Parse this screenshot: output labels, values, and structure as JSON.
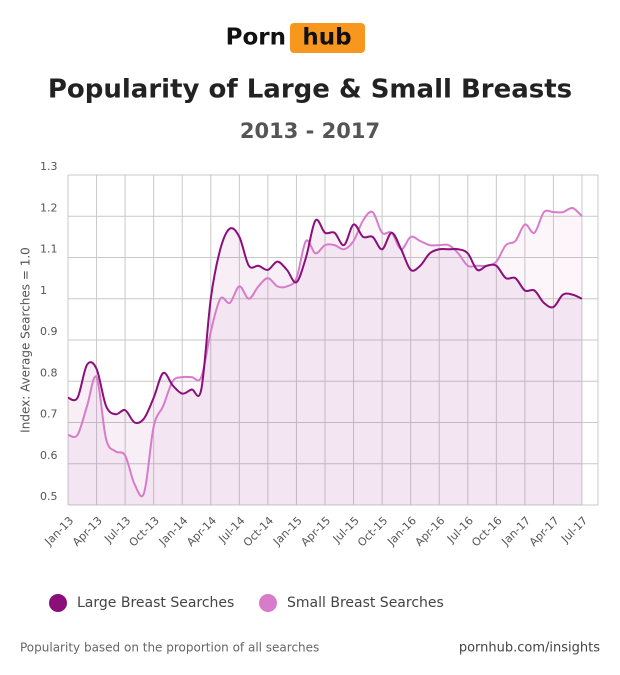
{
  "logo": {
    "left": "Porn",
    "right": "hub"
  },
  "chart_data": {
    "type": "line",
    "title": "Popularity of Large & Small Breasts",
    "subtitle": "2013 - 2017",
    "y_label": "Index: Average Searches = 1.0",
    "categories": [
      "Jan-13",
      null,
      null,
      "Apr-13",
      null,
      null,
      "Jul-13",
      null,
      null,
      "Oct-13",
      null,
      null,
      "Jan-14",
      null,
      null,
      "Apr-14",
      null,
      null,
      "Jul-14",
      null,
      null,
      "Oct-14",
      null,
      null,
      "Jan-15",
      null,
      null,
      "Apr-15",
      null,
      null,
      "Jul-15",
      null,
      null,
      "Oct-15",
      null,
      null,
      "Jan-16",
      null,
      null,
      "Apr-16",
      null,
      null,
      "Jul-16",
      null,
      null,
      "Oct-16",
      null,
      null,
      "Jan-17",
      null,
      null,
      "Apr-17",
      null,
      null,
      "Jul-17"
    ],
    "series": [
      {
        "name": "Large Breast Searches",
        "color": "#8b0f7a",
        "values": [
          0.76,
          0.76,
          0.84,
          0.83,
          0.74,
          0.72,
          0.73,
          0.7,
          0.71,
          0.76,
          0.82,
          0.79,
          0.77,
          0.78,
          0.78,
          1.0,
          1.12,
          1.17,
          1.15,
          1.08,
          1.08,
          1.07,
          1.09,
          1.07,
          1.04,
          1.1,
          1.19,
          1.16,
          1.16,
          1.13,
          1.18,
          1.15,
          1.15,
          1.12,
          1.16,
          1.12,
          1.07,
          1.08,
          1.11,
          1.12,
          1.12,
          1.12,
          1.11,
          1.07,
          1.08,
          1.08,
          1.05,
          1.05,
          1.02,
          1.02,
          0.99,
          0.98,
          1.01,
          1.01,
          1.0
        ]
      },
      {
        "name": "Small Breast Searches",
        "color": "#d77ccb",
        "values": [
          0.67,
          0.67,
          0.74,
          0.81,
          0.66,
          0.63,
          0.62,
          0.55,
          0.53,
          0.69,
          0.74,
          0.8,
          0.81,
          0.81,
          0.81,
          0.92,
          1.0,
          0.99,
          1.03,
          1.0,
          1.03,
          1.05,
          1.03,
          1.03,
          1.05,
          1.14,
          1.11,
          1.13,
          1.13,
          1.12,
          1.14,
          1.19,
          1.21,
          1.16,
          1.16,
          1.12,
          1.15,
          1.14,
          1.13,
          1.13,
          1.13,
          1.11,
          1.08,
          1.08,
          1.08,
          1.09,
          1.13,
          1.14,
          1.18,
          1.16,
          1.21,
          1.21,
          1.21,
          1.22,
          1.2
        ]
      }
    ],
    "ylim": [
      0.5,
      1.3
    ],
    "yticks": [
      0.5,
      0.6,
      0.7,
      0.8,
      0.9,
      1,
      1.1,
      1.2,
      1.3
    ],
    "grid": true
  },
  "footer": {
    "note": "Popularity based on the proportion of all searches",
    "source": "pornhub.com/insights"
  }
}
